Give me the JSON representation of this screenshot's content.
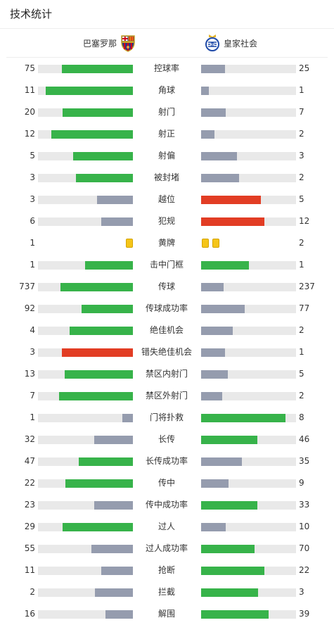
{
  "header": {
    "title": "技术统计"
  },
  "teams": {
    "home": "巴塞罗那",
    "away": "皇家社会"
  },
  "colors": {
    "green": "#37b34a",
    "gray": "#959cae",
    "red": "#e23d24",
    "track": "#e9e9e9",
    "card": "#f5c518"
  },
  "stats": [
    {
      "label": "控球率",
      "home": "75",
      "away": "25",
      "hf": 0.75,
      "af": 0.25,
      "hc": "green",
      "ac": "gray"
    },
    {
      "label": "角球",
      "home": "11",
      "away": "1",
      "hf": 0.92,
      "af": 0.08,
      "hc": "green",
      "ac": "gray"
    },
    {
      "label": "射门",
      "home": "20",
      "away": "7",
      "hf": 0.74,
      "af": 0.26,
      "hc": "green",
      "ac": "gray"
    },
    {
      "label": "射正",
      "home": "12",
      "away": "2",
      "hf": 0.86,
      "af": 0.14,
      "hc": "green",
      "ac": "gray"
    },
    {
      "label": "射偏",
      "home": "5",
      "away": "3",
      "hf": 0.63,
      "af": 0.38,
      "hc": "green",
      "ac": "gray"
    },
    {
      "label": "被封堵",
      "home": "3",
      "away": "2",
      "hf": 0.6,
      "af": 0.4,
      "hc": "green",
      "ac": "gray"
    },
    {
      "label": "越位",
      "home": "3",
      "away": "5",
      "hf": 0.38,
      "af": 0.63,
      "hc": "gray",
      "ac": "red"
    },
    {
      "label": "犯规",
      "home": "6",
      "away": "12",
      "hf": 0.33,
      "af": 0.67,
      "hc": "gray",
      "ac": "red"
    },
    {
      "label": "黄牌",
      "home": "1",
      "away": "2",
      "cards": true,
      "hcards": 1,
      "acards": 2
    },
    {
      "label": "击中门框",
      "home": "1",
      "away": "1",
      "hf": 0.5,
      "af": 0.5,
      "hc": "green",
      "ac": "green"
    },
    {
      "label": "传球",
      "home": "737",
      "away": "237",
      "hf": 0.76,
      "af": 0.24,
      "hc": "green",
      "ac": "gray"
    },
    {
      "label": "传球成功率",
      "home": "92",
      "away": "77",
      "hf": 0.54,
      "af": 0.46,
      "hc": "green",
      "ac": "gray"
    },
    {
      "label": "绝佳机会",
      "home": "4",
      "away": "2",
      "hf": 0.67,
      "af": 0.33,
      "hc": "green",
      "ac": "gray"
    },
    {
      "label": "错失绝佳机会",
      "home": "3",
      "away": "1",
      "hf": 0.75,
      "af": 0.25,
      "hc": "red",
      "ac": "gray"
    },
    {
      "label": "禁区内射门",
      "home": "13",
      "away": "5",
      "hf": 0.72,
      "af": 0.28,
      "hc": "green",
      "ac": "gray"
    },
    {
      "label": "禁区外射门",
      "home": "7",
      "away": "2",
      "hf": 0.78,
      "af": 0.22,
      "hc": "green",
      "ac": "gray"
    },
    {
      "label": "门将扑救",
      "home": "1",
      "away": "8",
      "hf": 0.11,
      "af": 0.89,
      "hc": "gray",
      "ac": "green"
    },
    {
      "label": "长传",
      "home": "32",
      "away": "46",
      "hf": 0.41,
      "af": 0.59,
      "hc": "gray",
      "ac": "green"
    },
    {
      "label": "长传成功率",
      "home": "47",
      "away": "35",
      "hf": 0.57,
      "af": 0.43,
      "hc": "green",
      "ac": "gray"
    },
    {
      "label": "传中",
      "home": "22",
      "away": "9",
      "hf": 0.71,
      "af": 0.29,
      "hc": "green",
      "ac": "gray"
    },
    {
      "label": "传中成功率",
      "home": "23",
      "away": "33",
      "hf": 0.41,
      "af": 0.59,
      "hc": "gray",
      "ac": "green"
    },
    {
      "label": "过人",
      "home": "29",
      "away": "10",
      "hf": 0.74,
      "af": 0.26,
      "hc": "green",
      "ac": "gray"
    },
    {
      "label": "过人成功率",
      "home": "55",
      "away": "70",
      "hf": 0.44,
      "af": 0.56,
      "hc": "gray",
      "ac": "green"
    },
    {
      "label": "抢断",
      "home": "11",
      "away": "22",
      "hf": 0.33,
      "af": 0.67,
      "hc": "gray",
      "ac": "green"
    },
    {
      "label": "拦截",
      "home": "2",
      "away": "3",
      "hf": 0.4,
      "af": 0.6,
      "hc": "gray",
      "ac": "green"
    },
    {
      "label": "解围",
      "home": "16",
      "away": "39",
      "hf": 0.29,
      "af": 0.71,
      "hc": "gray",
      "ac": "green"
    }
  ]
}
